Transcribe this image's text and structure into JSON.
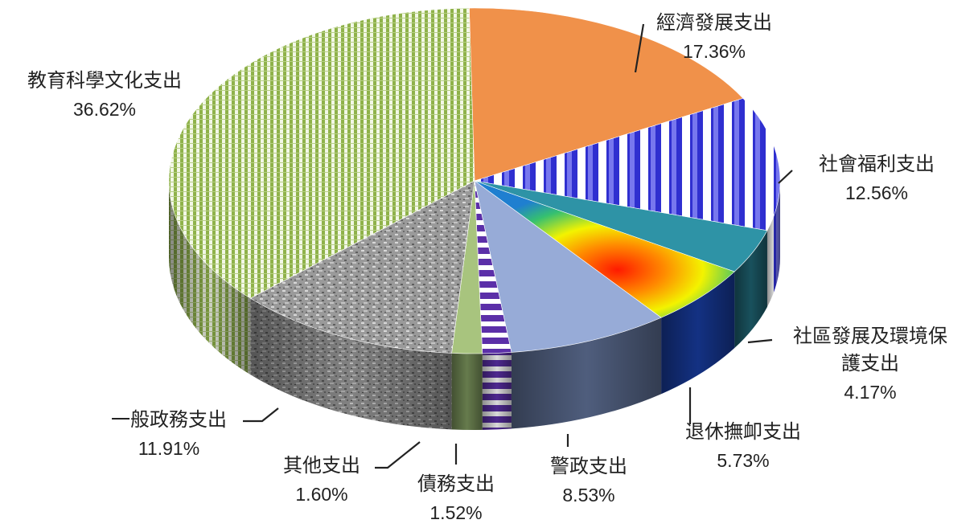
{
  "chart_data": {
    "type": "pie",
    "variant": "3d",
    "slices": [
      {
        "label": "經濟發展支出",
        "value": 17.36,
        "value_label": "17.36%",
        "color": "#F0914A"
      },
      {
        "label": "社會福利支出",
        "value": 12.56,
        "value_label": "12.56%",
        "color": "#3B3BE0"
      },
      {
        "label": "社區發展及環境保護支出",
        "label_lines": [
          "社區發展及環境保",
          "護支出"
        ],
        "value": 4.17,
        "value_label": "4.17%",
        "color": "#2E93A6"
      },
      {
        "label": "退休撫卹支出",
        "value": 5.73,
        "value_label": "5.73%",
        "color": "#F07A1A"
      },
      {
        "label": "警政支出",
        "value": 8.53,
        "value_label": "8.53%",
        "color": "#97ABD7"
      },
      {
        "label": "債務支出",
        "value": 1.52,
        "value_label": "1.52%",
        "color": "#5B2FA8"
      },
      {
        "label": "其他支出",
        "value": 1.6,
        "value_label": "1.60%",
        "color": "#A8C47E"
      },
      {
        "label": "一般政務支出",
        "value": 11.91,
        "value_label": "11.91%",
        "color": "#9A9A9A"
      },
      {
        "label": "教育科學文化支出",
        "value": 36.62,
        "value_label": "36.62%",
        "color": "#8FB24A"
      }
    ]
  }
}
